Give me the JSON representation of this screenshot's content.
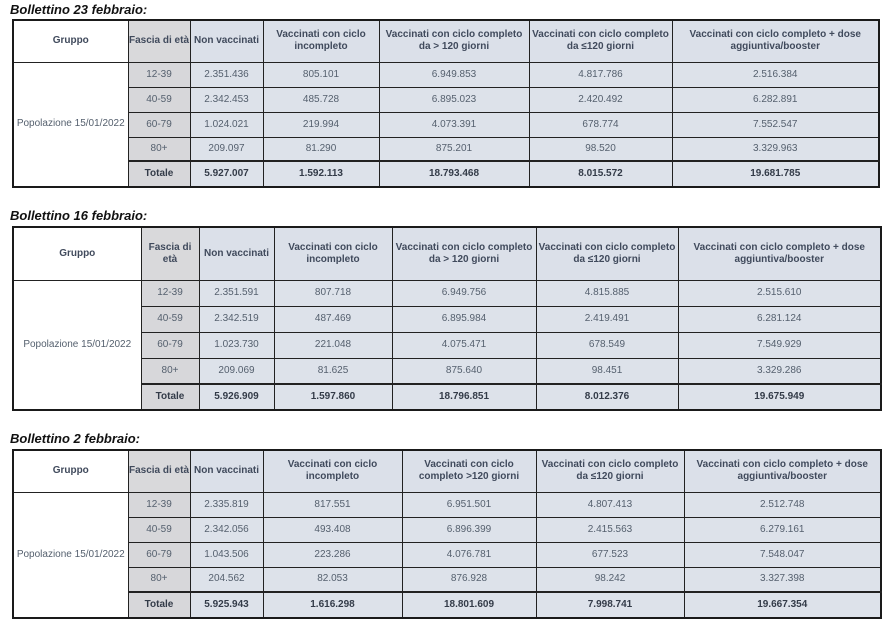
{
  "headers": {
    "gruppo": "Gruppo",
    "fascia": "Fascia di età",
    "non": "Non vaccinati",
    "incompleto": "Vaccinati con ciclo incompleto",
    "completo_oltre": "Vaccinati con ciclo completo da > 120 giorni",
    "completo_entro": "Vaccinati con ciclo completo da ≤120 giorni",
    "booster": "Vaccinati con ciclo completo + dose aggiuntiva/booster",
    "completo_oltre_b3": "Vaccinati con ciclo completo >120 giorni"
  },
  "group_label": "Popolazione 15/01/2022",
  "ages": [
    "12-39",
    "40-59",
    "60-79",
    "80+"
  ],
  "total_label": "Totale",
  "bulletins": [
    {
      "title": "Bollettino 23 febbraio:",
      "rows": [
        [
          "2.351.436",
          "805.101",
          "6.949.853",
          "4.817.786",
          "2.516.384"
        ],
        [
          "2.342.453",
          "485.728",
          "6.895.023",
          "2.420.492",
          "6.282.891"
        ],
        [
          "1.024.021",
          "219.994",
          "4.073.391",
          "678.774",
          "7.552.547"
        ],
        [
          "209.097",
          "81.290",
          "875.201",
          "98.520",
          "3.329.963"
        ]
      ],
      "total": [
        "5.927.007",
        "1.592.113",
        "18.793.468",
        "8.015.572",
        "19.681.785"
      ]
    },
    {
      "title": "Bollettino 16 febbraio:",
      "rows": [
        [
          "2.351.591",
          "807.718",
          "6.949.756",
          "4.815.885",
          "2.515.610"
        ],
        [
          "2.342.519",
          "487.469",
          "6.895.984",
          "2.419.491",
          "6.281.124"
        ],
        [
          "1.023.730",
          "221.048",
          "4.075.471",
          "678.549",
          "7.549.929"
        ],
        [
          "209.069",
          "81.625",
          "875.640",
          "98.451",
          "3.329.286"
        ]
      ],
      "total": [
        "5.926.909",
        "1.597.860",
        "18.796.851",
        "8.012.376",
        "19.675.949"
      ]
    },
    {
      "title": "Bollettino 2 febbraio:",
      "rows": [
        [
          "2.335.819",
          "817.551",
          "6.951.501",
          "4.807.413",
          "2.512.748"
        ],
        [
          "2.342.056",
          "493.408",
          "6.896.399",
          "2.415.563",
          "6.279.161"
        ],
        [
          "1.043.506",
          "223.286",
          "4.076.781",
          "677.523",
          "7.548.047"
        ],
        [
          "204.562",
          "82.053",
          "876.928",
          "98.242",
          "3.327.398"
        ]
      ],
      "total": [
        "5.925.943",
        "1.616.298",
        "18.801.609",
        "7.998.741",
        "19.667.354"
      ]
    }
  ]
}
